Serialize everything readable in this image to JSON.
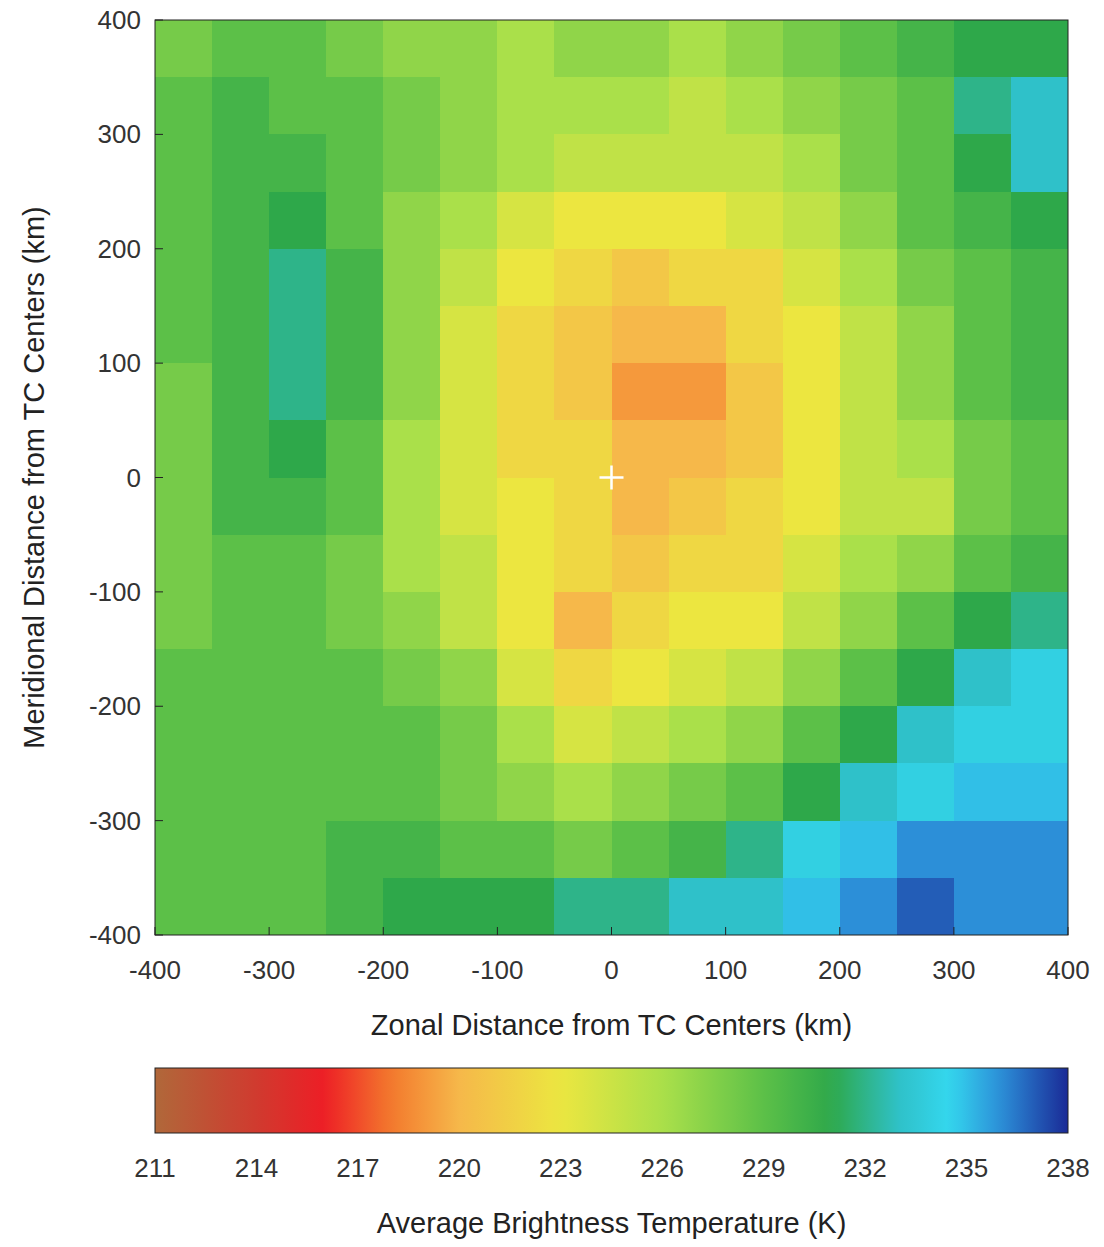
{
  "chart_data": {
    "type": "heatmap",
    "x_label": "Zonal Distance from TC Centers (km)",
    "y_label": "Meridional Distance from TC Centers (km)",
    "x": [
      -375,
      -325,
      -275,
      -225,
      -175,
      -125,
      -75,
      -25,
      25,
      75,
      125,
      175,
      225,
      275,
      325,
      375
    ],
    "y": [
      375,
      325,
      275,
      225,
      175,
      125,
      75,
      25,
      -25,
      -75,
      -125,
      -175,
      -225,
      -275,
      -325,
      -375
    ],
    "values": [
      [
        228,
        229,
        229,
        228,
        227,
        227,
        226,
        227,
        227,
        226,
        227,
        228,
        229,
        230,
        231,
        231
      ],
      [
        229,
        230,
        229,
        229,
        228,
        227,
        226,
        226,
        226,
        225,
        226,
        227,
        228,
        229,
        232,
        233
      ],
      [
        229,
        230,
        230,
        229,
        228,
        227,
        226,
        225,
        225,
        225,
        225,
        226,
        228,
        229,
        231,
        233
      ],
      [
        229,
        230,
        231,
        229,
        227,
        226,
        224,
        223,
        223,
        223,
        224,
        225,
        227,
        229,
        230,
        231
      ],
      [
        229,
        230,
        232,
        230,
        227,
        225,
        223,
        222,
        221,
        222,
        222,
        224,
        226,
        228,
        229,
        230
      ],
      [
        229,
        230,
        232,
        230,
        227,
        224,
        222,
        221,
        220,
        220,
        222,
        223,
        225,
        227,
        229,
        230
      ],
      [
        228,
        230,
        232,
        230,
        227,
        224,
        222,
        221,
        219,
        219,
        221,
        223,
        225,
        227,
        229,
        230
      ],
      [
        228,
        230,
        231,
        229,
        226,
        224,
        222,
        222,
        220,
        220,
        221,
        223,
        225,
        226,
        228,
        229
      ],
      [
        228,
        230,
        230,
        229,
        226,
        224,
        223,
        222,
        220,
        221,
        222,
        223,
        225,
        225,
        228,
        229
      ],
      [
        228,
        229,
        229,
        228,
        226,
        225,
        223,
        222,
        221,
        222,
        222,
        224,
        226,
        227,
        229,
        230
      ],
      [
        228,
        229,
        229,
        228,
        227,
        225,
        223,
        220,
        222,
        223,
        223,
        225,
        227,
        229,
        231,
        232
      ],
      [
        229,
        229,
        229,
        229,
        228,
        227,
        224,
        222,
        223,
        224,
        225,
        227,
        229,
        231,
        233,
        234
      ],
      [
        229,
        229,
        229,
        229,
        229,
        228,
        226,
        224,
        225,
        226,
        227,
        229,
        231,
        233,
        234,
        234
      ],
      [
        229,
        229,
        229,
        229,
        229,
        228,
        227,
        226,
        227,
        228,
        229,
        231,
        233,
        234,
        235,
        235
      ],
      [
        229,
        229,
        229,
        230,
        230,
        229,
        229,
        228,
        229,
        230,
        232,
        234,
        235,
        236,
        236,
        236
      ],
      [
        229,
        229,
        229,
        230,
        231,
        231,
        231,
        232,
        232,
        233,
        233,
        235,
        236,
        237,
        236,
        236
      ]
    ],
    "xlim": [
      -400,
      400
    ],
    "ylim": [
      -400,
      400
    ],
    "xticks": [
      -400,
      -300,
      -200,
      -100,
      0,
      100,
      200,
      300,
      400
    ],
    "yticks": [
      -400,
      -300,
      -200,
      -100,
      0,
      100,
      200,
      300,
      400
    ],
    "colorbar_label": "Average Brightness Temperature (K)",
    "colorbar_range": [
      211,
      238
    ],
    "colorbar_ticks": [
      211,
      214,
      217,
      220,
      223,
      226,
      229,
      232,
      235,
      238
    ],
    "center": [
      0,
      0
    ],
    "marker": "plus"
  }
}
